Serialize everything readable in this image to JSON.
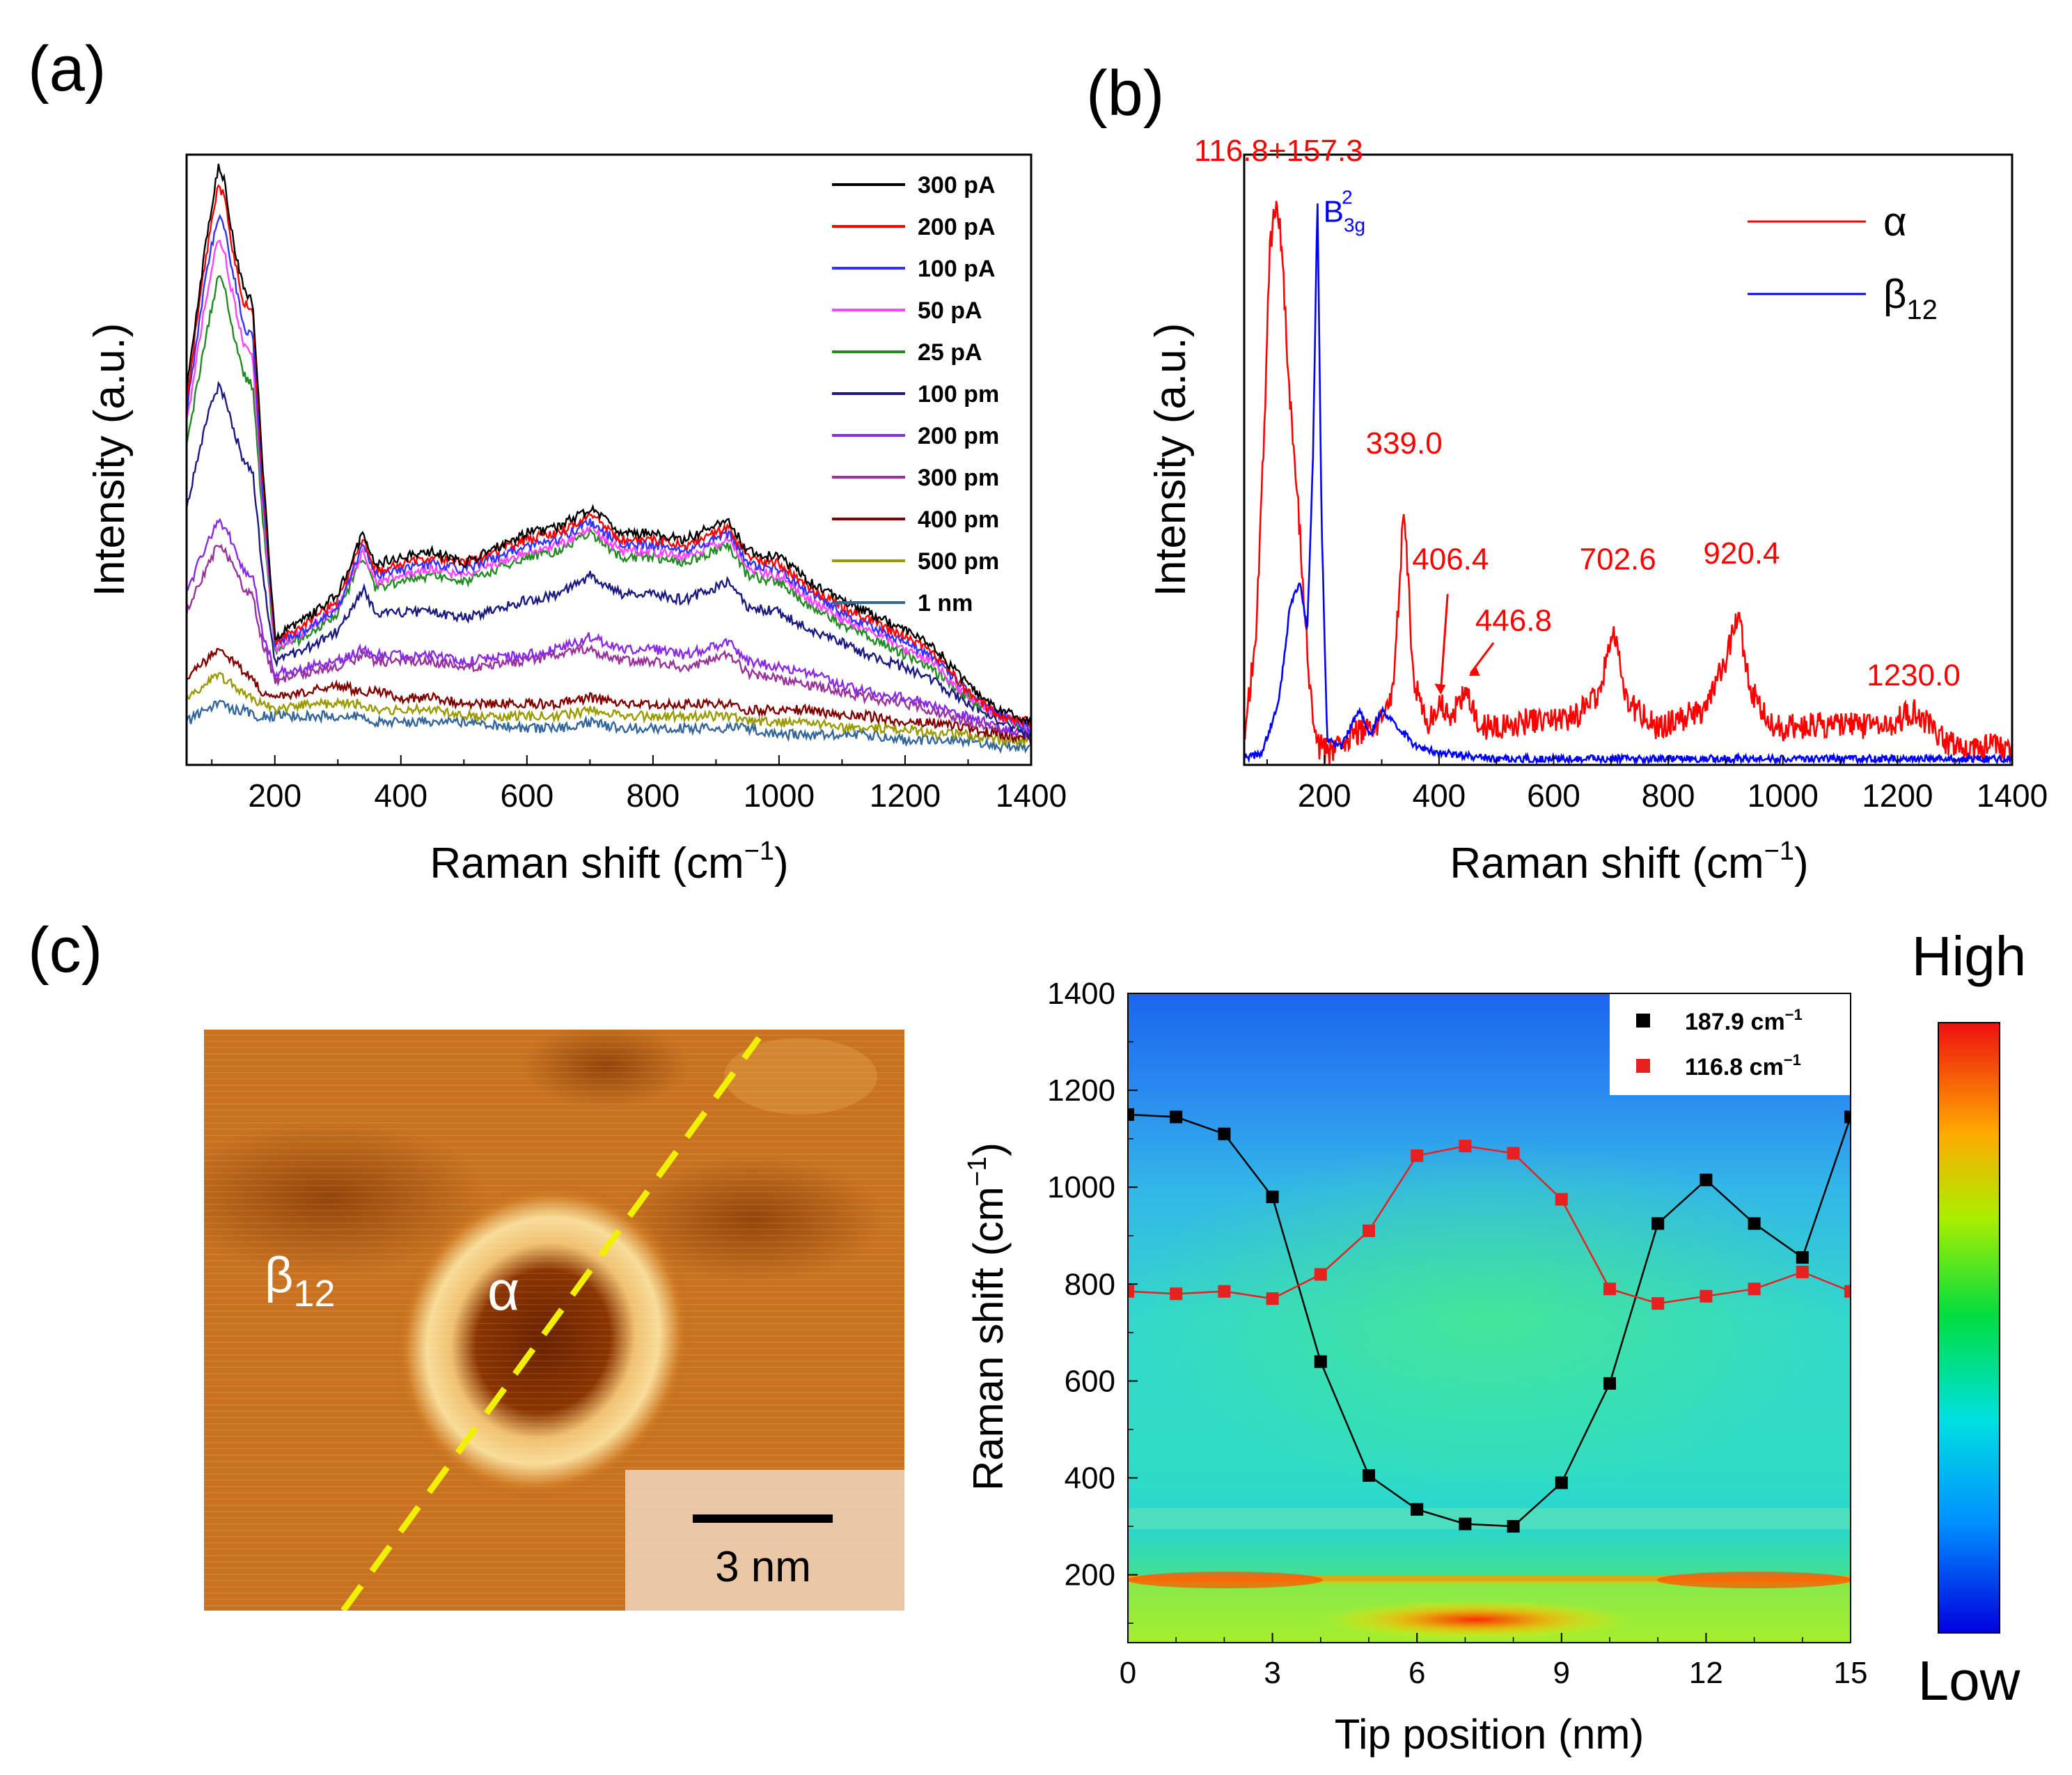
{
  "panel_labels": {
    "a": "(a)",
    "b": "(b)",
    "c": "(c)"
  },
  "chart_data": [
    {
      "panel": "(a)",
      "type": "line",
      "xlabel": "Raman shift (cm",
      "xlabel_sup": "−1",
      "xlabel_end": ")",
      "ylabel": "Intensity (a.u.)",
      "xlim": [
        60,
        1400
      ],
      "ylim": [
        0,
        1.0
      ],
      "xticks": [
        200,
        400,
        600,
        800,
        1000,
        1200,
        1400
      ],
      "legend_position": "top-right",
      "x": [
        60,
        90,
        110,
        120,
        135,
        150,
        165,
        180,
        200,
        250,
        300,
        340,
        360,
        400,
        450,
        500,
        600,
        650,
        700,
        750,
        800,
        850,
        920,
        950,
        1000,
        1050,
        1100,
        1140,
        1200,
        1240,
        1300,
        1350,
        1400
      ],
      "peaks": [
        {
          "x": 116.8,
          "label": "116.8"
        },
        {
          "x": 157.3,
          "label": "157.3"
        },
        {
          "x": 339.0,
          "label": "339.0"
        },
        {
          "x": 702.6,
          "label": "702.6"
        },
        {
          "x": 920.4,
          "label": "920.4"
        }
      ],
      "series": [
        {
          "name": "300 pA",
          "color": "#000000",
          "values": [
            0.62,
            0.85,
            0.98,
            0.96,
            0.85,
            0.78,
            0.76,
            0.5,
            0.21,
            0.24,
            0.28,
            0.38,
            0.33,
            0.34,
            0.35,
            0.33,
            0.38,
            0.39,
            0.42,
            0.38,
            0.38,
            0.37,
            0.4,
            0.35,
            0.34,
            0.3,
            0.27,
            0.25,
            0.22,
            0.2,
            0.13,
            0.09,
            0.07
          ]
        },
        {
          "name": "200 pA",
          "color": "#ff0000",
          "values": [
            0.6,
            0.83,
            0.95,
            0.93,
            0.83,
            0.76,
            0.74,
            0.48,
            0.2,
            0.23,
            0.27,
            0.37,
            0.32,
            0.33,
            0.34,
            0.33,
            0.37,
            0.38,
            0.41,
            0.37,
            0.37,
            0.36,
            0.39,
            0.34,
            0.33,
            0.29,
            0.26,
            0.24,
            0.21,
            0.19,
            0.12,
            0.08,
            0.07
          ]
        },
        {
          "name": "100 pA",
          "color": "#3333ff",
          "values": [
            0.58,
            0.8,
            0.9,
            0.88,
            0.8,
            0.72,
            0.7,
            0.46,
            0.2,
            0.22,
            0.26,
            0.36,
            0.31,
            0.32,
            0.33,
            0.32,
            0.36,
            0.37,
            0.4,
            0.36,
            0.36,
            0.35,
            0.38,
            0.33,
            0.32,
            0.28,
            0.25,
            0.23,
            0.2,
            0.18,
            0.12,
            0.08,
            0.06
          ]
        },
        {
          "name": "50 pA",
          "color": "#ff44ff",
          "values": [
            0.56,
            0.76,
            0.86,
            0.84,
            0.76,
            0.69,
            0.67,
            0.44,
            0.19,
            0.22,
            0.26,
            0.35,
            0.3,
            0.31,
            0.32,
            0.31,
            0.35,
            0.36,
            0.39,
            0.35,
            0.35,
            0.34,
            0.37,
            0.32,
            0.31,
            0.27,
            0.24,
            0.22,
            0.19,
            0.17,
            0.11,
            0.08,
            0.06
          ]
        },
        {
          "name": "25 pA",
          "color": "#228b22",
          "values": [
            0.52,
            0.7,
            0.8,
            0.78,
            0.7,
            0.64,
            0.62,
            0.41,
            0.19,
            0.21,
            0.25,
            0.34,
            0.29,
            0.3,
            0.31,
            0.3,
            0.34,
            0.35,
            0.38,
            0.34,
            0.34,
            0.33,
            0.36,
            0.31,
            0.3,
            0.26,
            0.23,
            0.21,
            0.18,
            0.16,
            0.11,
            0.08,
            0.06
          ]
        },
        {
          "name": "100 pm",
          "color": "#1a1a80",
          "values": [
            0.42,
            0.56,
            0.62,
            0.6,
            0.55,
            0.5,
            0.48,
            0.32,
            0.17,
            0.19,
            0.22,
            0.29,
            0.25,
            0.25,
            0.25,
            0.24,
            0.27,
            0.28,
            0.31,
            0.28,
            0.28,
            0.27,
            0.3,
            0.26,
            0.25,
            0.22,
            0.2,
            0.18,
            0.16,
            0.14,
            0.1,
            0.07,
            0.05
          ]
        },
        {
          "name": "200 pm",
          "color": "#8a2be2",
          "values": [
            0.28,
            0.36,
            0.4,
            0.39,
            0.36,
            0.32,
            0.31,
            0.22,
            0.15,
            0.16,
            0.17,
            0.19,
            0.18,
            0.18,
            0.18,
            0.17,
            0.18,
            0.19,
            0.21,
            0.19,
            0.19,
            0.18,
            0.2,
            0.17,
            0.16,
            0.15,
            0.13,
            0.12,
            0.11,
            0.1,
            0.08,
            0.06,
            0.05
          ]
        },
        {
          "name": "300 pm",
          "color": "#993399",
          "values": [
            0.25,
            0.32,
            0.36,
            0.35,
            0.32,
            0.29,
            0.28,
            0.2,
            0.14,
            0.15,
            0.16,
            0.18,
            0.17,
            0.17,
            0.17,
            0.16,
            0.17,
            0.18,
            0.19,
            0.17,
            0.17,
            0.16,
            0.18,
            0.15,
            0.14,
            0.13,
            0.12,
            0.11,
            0.1,
            0.09,
            0.07,
            0.06,
            0.05
          ]
        },
        {
          "name": "400 pm",
          "color": "#800000",
          "values": [
            0.14,
            0.17,
            0.19,
            0.18,
            0.17,
            0.15,
            0.14,
            0.12,
            0.11,
            0.12,
            0.13,
            0.12,
            0.12,
            0.11,
            0.11,
            0.1,
            0.1,
            0.1,
            0.11,
            0.1,
            0.1,
            0.1,
            0.1,
            0.09,
            0.09,
            0.09,
            0.08,
            0.08,
            0.07,
            0.07,
            0.06,
            0.05,
            0.04
          ]
        },
        {
          "name": "500 pm",
          "color": "#999900",
          "values": [
            0.11,
            0.13,
            0.15,
            0.14,
            0.13,
            0.12,
            0.11,
            0.1,
            0.09,
            0.1,
            0.1,
            0.1,
            0.09,
            0.09,
            0.09,
            0.08,
            0.08,
            0.08,
            0.09,
            0.08,
            0.08,
            0.08,
            0.08,
            0.07,
            0.07,
            0.07,
            0.06,
            0.06,
            0.06,
            0.05,
            0.05,
            0.04,
            0.04
          ]
        },
        {
          "name": "1 nm",
          "color": "#336699",
          "values": [
            0.07,
            0.09,
            0.1,
            0.1,
            0.09,
            0.09,
            0.08,
            0.08,
            0.08,
            0.08,
            0.08,
            0.08,
            0.07,
            0.07,
            0.07,
            0.07,
            0.06,
            0.06,
            0.07,
            0.06,
            0.06,
            0.06,
            0.06,
            0.06,
            0.05,
            0.05,
            0.05,
            0.05,
            0.04,
            0.04,
            0.04,
            0.03,
            0.03
          ]
        }
      ]
    },
    {
      "panel": "(b)",
      "type": "line",
      "xlabel": "Raman shift (cm",
      "xlabel_sup": "−1",
      "xlabel_end": ")",
      "ylabel": "Intensity (a.u.)",
      "xlim": [
        60,
        1400
      ],
      "ylim": [
        0,
        1.0
      ],
      "xticks": [
        200,
        400,
        600,
        800,
        1000,
        1200,
        1400
      ],
      "legend_position": "top-right",
      "series": [
        {
          "name": "α",
          "color": "#ff0000",
          "x": [
            60,
            80,
            95,
            105,
            116.8,
            125,
            140,
            157.3,
            175,
            190,
            210,
            250,
            290,
            320,
            339,
            355,
            380,
            406.4,
            420,
            446.8,
            470,
            550,
            640,
            680,
            702.6,
            730,
            780,
            860,
            900,
            920.4,
            945,
            990,
            1100,
            1180,
            1230,
            1280,
            1330,
            1400
          ],
          "values": [
            0.05,
            0.2,
            0.55,
            0.85,
            0.93,
            0.85,
            0.6,
            0.38,
            0.12,
            0.03,
            0.02,
            0.05,
            0.06,
            0.12,
            0.43,
            0.14,
            0.07,
            0.1,
            0.07,
            0.13,
            0.06,
            0.07,
            0.08,
            0.12,
            0.22,
            0.1,
            0.06,
            0.09,
            0.17,
            0.25,
            0.12,
            0.06,
            0.07,
            0.06,
            0.09,
            0.04,
            0.03,
            0.03
          ]
        },
        {
          "name": "β",
          "name_sub": "12",
          "color": "#0000ff",
          "x": [
            60,
            90,
            120,
            140,
            157.3,
            170,
            180,
            187.9,
            195,
            205,
            230,
            260,
            280,
            300,
            330,
            360,
            400,
            500,
            700,
            1000,
            1400
          ],
          "values": [
            0.01,
            0.02,
            0.1,
            0.26,
            0.3,
            0.22,
            0.5,
            0.93,
            0.4,
            0.04,
            0.03,
            0.09,
            0.05,
            0.09,
            0.06,
            0.03,
            0.02,
            0.01,
            0.01,
            0.01,
            0.01
          ]
        }
      ],
      "annotations": [
        {
          "text": "116.8+157.3",
          "x": 120,
          "y": 0.99,
          "color": "#ff0000"
        },
        {
          "text": "B",
          "sub": "3g",
          "sup": "2",
          "x": 198,
          "y": 0.89,
          "color": "#0000ff"
        },
        {
          "text": "339.0",
          "x": 339,
          "y": 0.51,
          "color": "#ff0000"
        },
        {
          "text": "406.4",
          "x": 420,
          "y": 0.32,
          "color": "#ff0000"
        },
        {
          "text": "446.8",
          "x": 530,
          "y": 0.22,
          "color": "#ff0000"
        },
        {
          "text": "702.6",
          "x": 712,
          "y": 0.32,
          "color": "#ff0000"
        },
        {
          "text": "920.4",
          "x": 928,
          "y": 0.33,
          "color": "#ff0000"
        },
        {
          "text": "1230.0",
          "x": 1228,
          "y": 0.13,
          "color": "#ff0000"
        }
      ]
    },
    {
      "panel": "(c)",
      "type": "heatmap",
      "xlabel": "Tip position (nm)",
      "ylabel": "Raman shift (cm",
      "ylabel_sup": "−1",
      "ylabel_end": ")",
      "xlim": [
        0,
        15
      ],
      "ylim": [
        60,
        1400
      ],
      "xticks": [
        0,
        3,
        6,
        9,
        12,
        15
      ],
      "yticks": [
        200,
        400,
        600,
        800,
        1000,
        1200,
        1400
      ],
      "colorbar": {
        "high_label": "High",
        "low_label": "Low"
      },
      "legend_position": "top-right",
      "series": [
        {
          "name": "187.9 cm",
          "name_sup": "−1",
          "color": "#000000",
          "x": [
            0,
            1,
            2,
            3,
            4,
            5,
            6,
            7,
            8,
            9,
            10,
            11,
            12,
            13,
            14,
            15
          ],
          "values": [
            1150,
            1145,
            1110,
            980,
            640,
            405,
            335,
            305,
            300,
            390,
            595,
            925,
            1015,
            925,
            855,
            1145
          ]
        },
        {
          "name": "116.8 cm",
          "name_sup": "−1",
          "color": "#e82020",
          "x": [
            0,
            1,
            2,
            3,
            4,
            5,
            6,
            7,
            8,
            9,
            10,
            11,
            12,
            13,
            14,
            15
          ],
          "values": [
            785,
            780,
            785,
            770,
            820,
            910,
            1065,
            1085,
            1070,
            975,
            790,
            760,
            775,
            790,
            825,
            785
          ]
        }
      ]
    }
  ],
  "stm": {
    "alpha_label": "α",
    "beta_label": "β",
    "beta_sub": "12",
    "scalebar_label": "3 nm"
  }
}
